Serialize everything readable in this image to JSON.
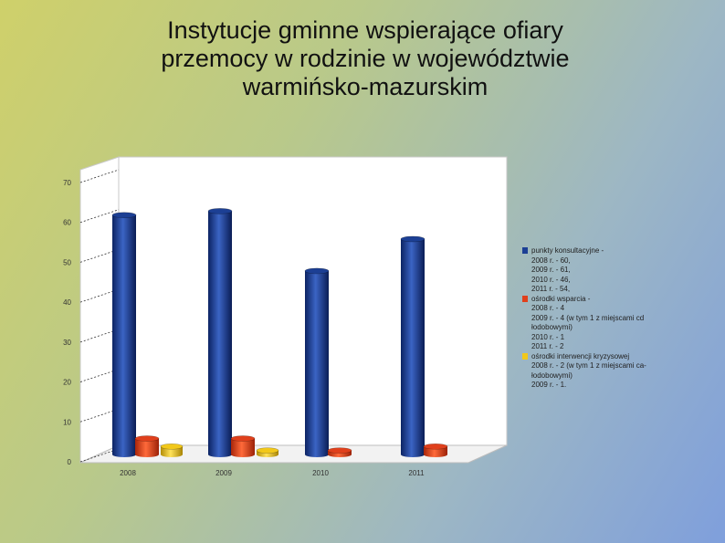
{
  "title_lines": [
    "Instytucje  gminne wspierające ofiary",
    "przemocy w rodzinie w województwie",
    "warmińsko-mazurskim"
  ],
  "chart_data": {
    "type": "bar",
    "categories": [
      "2008",
      "2009",
      "2010",
      "2011"
    ],
    "ylim": [
      0,
      70
    ],
    "yticks": [
      "0",
      "10",
      "20",
      "30",
      "40",
      "50",
      "60",
      "70"
    ],
    "series": [
      {
        "color": "#1c3f94",
        "values": [
          60,
          61,
          46,
          54
        ]
      },
      {
        "color": "#e0401c",
        "values": [
          4,
          4,
          1,
          2
        ]
      },
      {
        "color": "#f2c81a",
        "values": [
          2,
          1,
          null,
          null
        ]
      }
    ],
    "legend": [
      {
        "color": "#1c3f94",
        "lines": [
          "punkty konsultacyjne -",
          "2008 r. -  60,",
          "2009 r. - 61,",
          "2010 r. -  46,",
          "2011 r. - 54,"
        ]
      },
      {
        "color": "#e0401c",
        "lines": [
          "ośrodki wsparcia -",
          "2008 r. - 4",
          "2009 r. - 4  (w tym 1 z miejscami cd",
          "łodobowymi)",
          "2010 r. - 1",
          "2011 r. - 2"
        ]
      },
      {
        "color": "#f2c81a",
        "lines": [
          "ośrodki interwencji kryzysowej",
          "2008 r. - 2 (w tym 1 z miejscami ca-",
          "łodobowymi)",
          "2009 r. -  1."
        ]
      }
    ]
  }
}
